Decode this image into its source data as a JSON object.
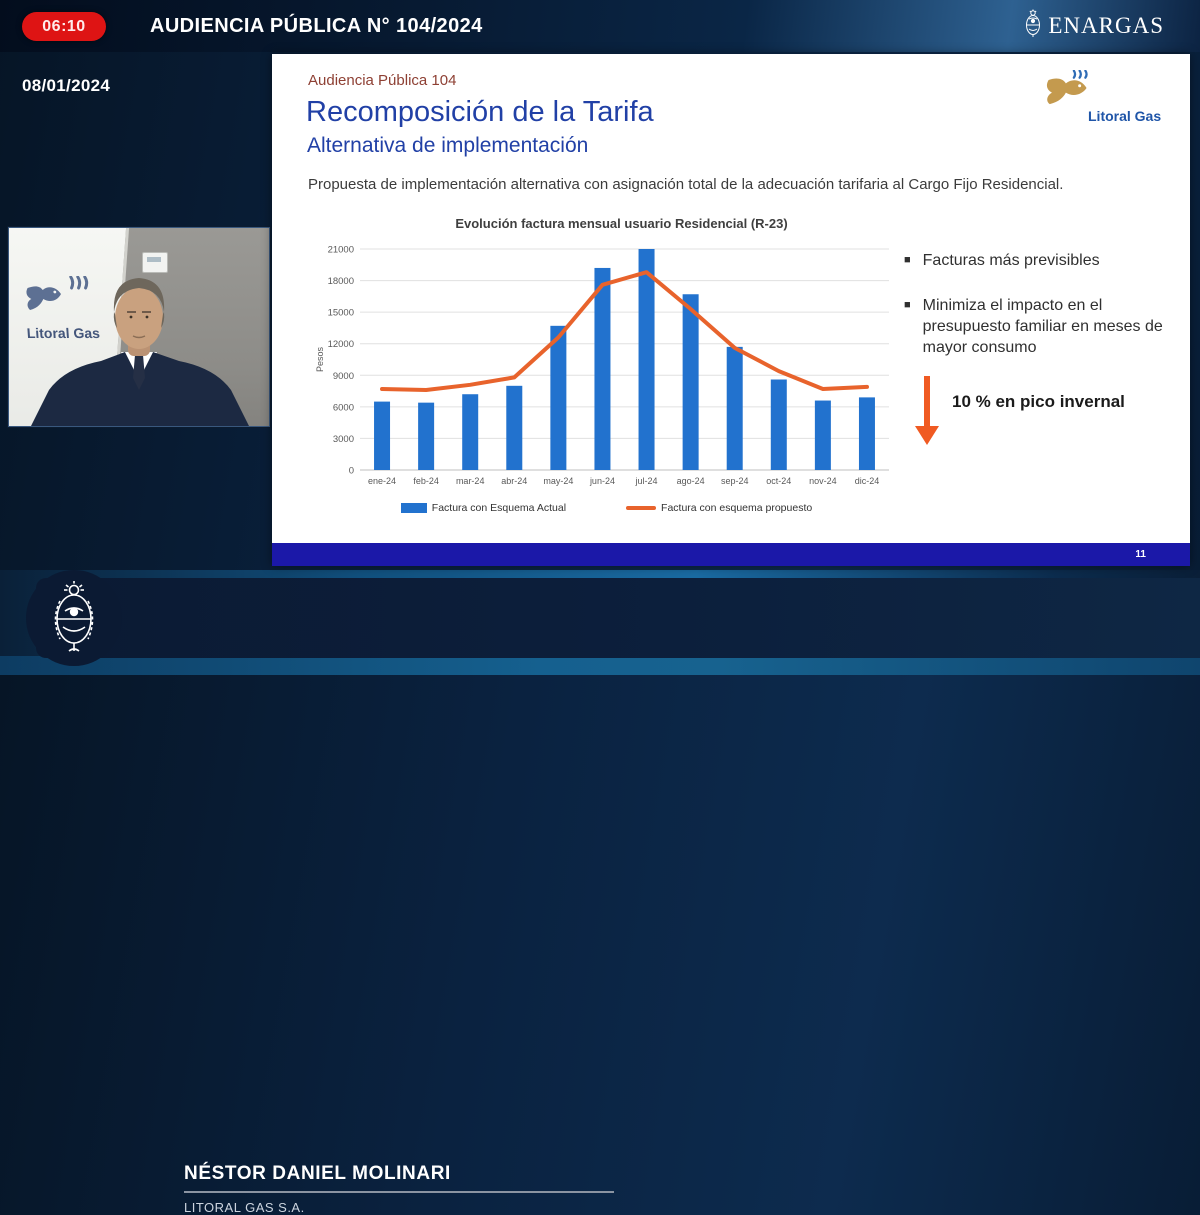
{
  "header": {
    "timer": "06:10",
    "title": "AUDIENCIA PÚBLICA N° 104/2024",
    "brand": "ENARGAS",
    "date": "08/01/2024"
  },
  "webcam": {
    "banner_logo_text": "Litoral Gas"
  },
  "slide": {
    "kicker": "Audiencia Pública 104",
    "title": "Recomposición de la Tarifa",
    "subtitle": "Alternativa de implementación",
    "lead": "Propuesta de implementación alternativa con asignación total de la adecuación tarifaria al Cargo Fijo Residencial.",
    "logo_text": "Litoral Gas",
    "bullets": [
      "Facturas más previsibles",
      "Minimiza el impacto en el presupuesto familiar en meses de mayor consumo"
    ],
    "highlight": "10 % en pico invernal",
    "page_number": "11"
  },
  "chart_data": {
    "type": "bar+line",
    "title": "Evolución factura mensual usuario Residencial (R-23)",
    "xlabel": "",
    "ylabel": "Pesos",
    "ylim": [
      0,
      21000
    ],
    "ytick_step": 3000,
    "grid": true,
    "legend_position": "bottom",
    "categories": [
      "ene-24",
      "feb-24",
      "mar-24",
      "abr-24",
      "may-24",
      "jun-24",
      "jul-24",
      "ago-24",
      "sep-24",
      "oct-24",
      "nov-24",
      "dic-24"
    ],
    "series": [
      {
        "name": "Factura con Esquema Actual",
        "type": "bar",
        "color": "#2272CE",
        "values": [
          6500,
          6400,
          7200,
          8000,
          13700,
          19200,
          21000,
          16700,
          11700,
          8600,
          6600,
          6900
        ]
      },
      {
        "name": "Factura con esquema propuesto",
        "type": "line",
        "color": "#E8632C",
        "values": [
          7700,
          7600,
          8100,
          8800,
          12600,
          17600,
          18800,
          15300,
          11600,
          9400,
          7700,
          7900
        ]
      }
    ]
  },
  "speaker": {
    "name": "NÉSTOR DANIEL MOLINARI",
    "org": "LITORAL GAS S.A."
  },
  "colors": {
    "badge_red": "#DE1414",
    "slide_footer_blue": "#1B18A8",
    "title_blue": "#2140A6",
    "kicker_maroon": "#8E4034",
    "arrow_orange": "#F05A22",
    "bar_blue": "#2272CE",
    "line_orange": "#E8632C"
  }
}
